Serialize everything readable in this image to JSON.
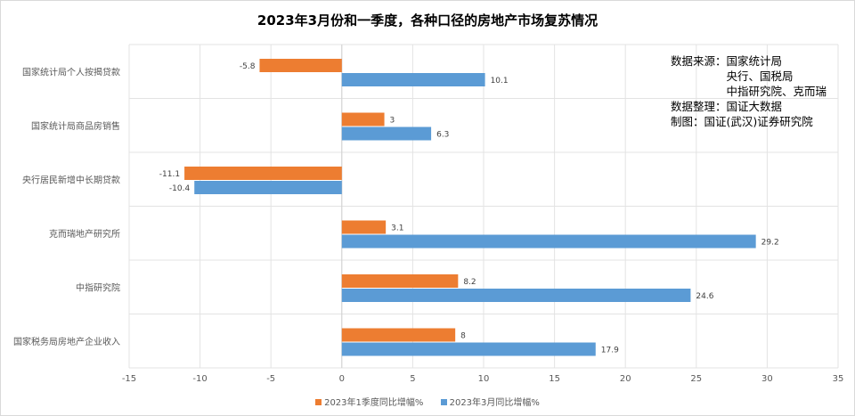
{
  "chart_data": {
    "type": "bar",
    "orientation": "horizontal",
    "title": "2023年3月份和一季度，各种口径的房地产市场复苏情况",
    "categories": [
      "国家统计局个人按揭贷款",
      "国家统计局商品房销售",
      "央行居民新增中长期贷款",
      "克而瑞地产研究所",
      "中指研究院",
      "国家税务局房地产企业收入"
    ],
    "series": [
      {
        "name": "2023年1季度同比增幅%",
        "color": "#ED7D31",
        "values": [
          -5.8,
          3,
          -11.1,
          3.1,
          8.2,
          8
        ]
      },
      {
        "name": "2023年3月同比增幅%",
        "color": "#5B9BD5",
        "values": [
          10.1,
          6.3,
          -10.4,
          29.2,
          24.6,
          17.9
        ]
      }
    ],
    "xlim": [
      -15,
      35
    ],
    "xticks": [
      -15,
      -10,
      -5,
      0,
      5,
      10,
      15,
      20,
      25,
      30,
      35
    ],
    "grid": true,
    "legend": "bottom"
  },
  "note": {
    "lines": [
      "数据来源：国家统计局",
      "　　　　　央行、国税局",
      "　　　　　中指研究院、克而瑞",
      "数据整理：国证大数据",
      "制图：国证(武汉)证券研究院"
    ]
  }
}
